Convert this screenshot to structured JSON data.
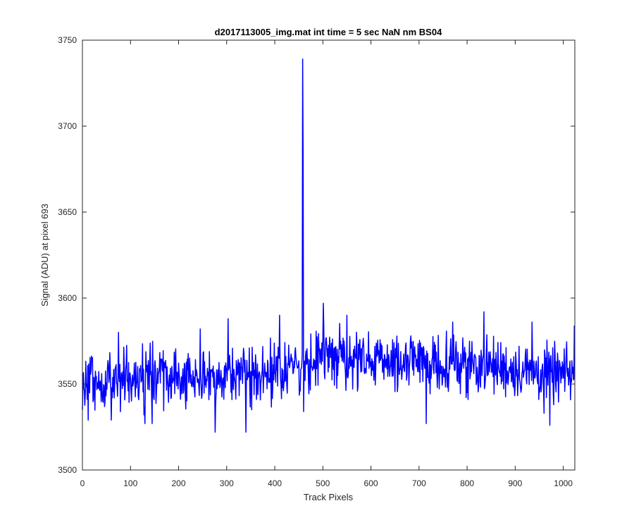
{
  "chart_data": {
    "type": "line",
    "title": "d2017113005_img.mat int time = 5 sec  NaN nm BS04",
    "xlabel": "Track Pixels",
    "ylabel": "Signal (ADU) at pixel 693",
    "xlim": [
      0,
      1024
    ],
    "ylim": [
      3500,
      3750
    ],
    "xticks": [
      0,
      100,
      200,
      300,
      400,
      500,
      600,
      700,
      800,
      900,
      1000
    ],
    "yticks": [
      3500,
      3550,
      3600,
      3650,
      3700,
      3750
    ],
    "grid": false,
    "legend": "none",
    "series": [
      {
        "color": "#0000ff",
        "n_points": 1024,
        "baseline": [
          [
            0,
            3552
          ],
          [
            200,
            3554
          ],
          [
            400,
            3557
          ],
          [
            500,
            3566
          ],
          [
            600,
            3563
          ],
          [
            800,
            3562
          ],
          [
            1000,
            3555
          ],
          [
            1023,
            3556
          ]
        ],
        "noise_amplitude": 8,
        "features": [
          {
            "x": 0,
            "y": 3535
          },
          {
            "x": 12,
            "y": 3529
          },
          {
            "x": 60,
            "y": 3529
          },
          {
            "x": 75,
            "y": 3580
          },
          {
            "x": 130,
            "y": 3527
          },
          {
            "x": 145,
            "y": 3527
          },
          {
            "x": 245,
            "y": 3582
          },
          {
            "x": 276,
            "y": 3522
          },
          {
            "x": 303,
            "y": 3588
          },
          {
            "x": 340,
            "y": 3522
          },
          {
            "x": 410,
            "y": 3590
          },
          {
            "x": 457,
            "y": 3567
          },
          {
            "x": 458,
            "y": 3739
          },
          {
            "x": 459,
            "y": 3680
          },
          {
            "x": 460,
            "y": 3534
          },
          {
            "x": 501,
            "y": 3597
          },
          {
            "x": 550,
            "y": 3590
          },
          {
            "x": 715,
            "y": 3527
          },
          {
            "x": 770,
            "y": 3586
          },
          {
            "x": 835,
            "y": 3592
          },
          {
            "x": 935,
            "y": 3586
          },
          {
            "x": 960,
            "y": 3533
          },
          {
            "x": 972,
            "y": 3526
          },
          {
            "x": 1023,
            "y": 3584
          }
        ]
      }
    ]
  }
}
